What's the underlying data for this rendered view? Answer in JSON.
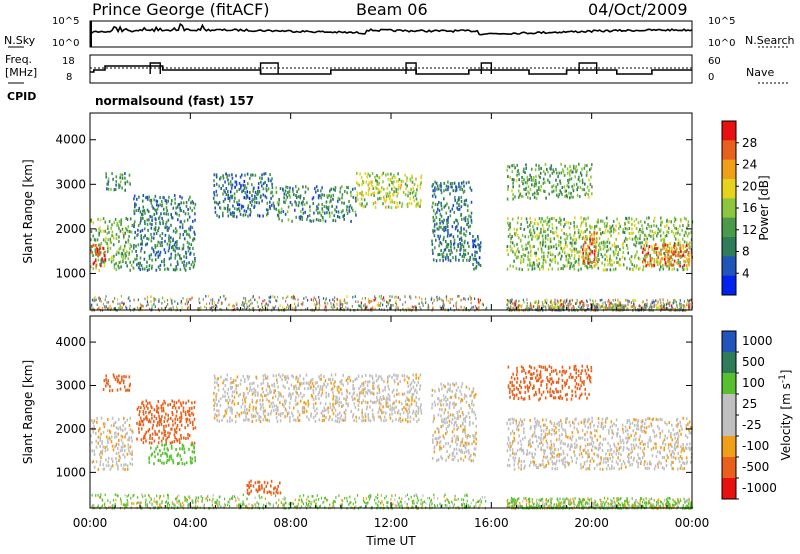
{
  "header": {
    "station": "Prince George (fitACF)",
    "beam": "Beam 06",
    "date": "04/Oct/2009"
  },
  "status": {
    "nsky_label": "N.Sky",
    "nsky_ticks": [
      "10^5",
      "10^0"
    ],
    "nsearch_label": "N.Search",
    "nsearch_ticks": [
      "10^5",
      "10^0"
    ],
    "freq_label_1": "Freq.",
    "freq_label_2": "[MHz]",
    "freq_ticks": [
      "18",
      "8"
    ],
    "nave_label": "Nave",
    "nave_ticks": [
      "60",
      "0"
    ],
    "cpid_label": "CPID",
    "cpid_value": "normalsound (fast) 157"
  },
  "colors": {
    "power": [
      "#0022ee",
      "#2255bb",
      "#2e7d58",
      "#4a9a4a",
      "#8cc63f",
      "#e6d31e",
      "#f0a018",
      "#e8601c",
      "#e81010"
    ],
    "velocity": [
      "#e81010",
      "#e8601c",
      "#f0a018",
      "#c0c0c0",
      "#c0c0c0",
      "#58c02e",
      "#2e7d58",
      "#2255bb"
    ],
    "ground": "#888888"
  },
  "chart_data": [
    {
      "type": "heatmap",
      "name": "power",
      "ylabel": "Slant Range [km]",
      "xlabel": "Time UT",
      "yticks": [
        "1000",
        "2000",
        "3000",
        "4000"
      ],
      "ytick_values": [
        1000,
        2000,
        3000,
        4000
      ],
      "xticks": [
        "00:00",
        "04:00",
        "08:00",
        "12:00",
        "16:00",
        "20:00",
        "00:00"
      ],
      "xtick_values": [
        0,
        4,
        8,
        12,
        16,
        20,
        24
      ],
      "xlim": [
        0,
        24
      ],
      "ylim": [
        180,
        4600
      ],
      "colorbar_label": "Power [dB]",
      "colorbar_ticks": [
        "28",
        "24",
        "20",
        "16",
        "12",
        "8",
        "4"
      ],
      "colorbar_values": [
        28,
        24,
        20,
        16,
        12,
        8,
        4
      ],
      "colorbar_range": [
        0,
        32
      ],
      "echo_regions": [
        {
          "t": [
            0.0,
            1.7
          ],
          "r": [
            1100,
            2300
          ],
          "value": 14
        },
        {
          "t": [
            0.0,
            0.6
          ],
          "r": [
            1200,
            1700
          ],
          "value": 28
        },
        {
          "t": [
            0.6,
            1.6
          ],
          "r": [
            2900,
            3300
          ],
          "value": 10
        },
        {
          "t": [
            1.7,
            4.2
          ],
          "r": [
            1100,
            2800
          ],
          "value": 9
        },
        {
          "t": [
            4.9,
            7.3
          ],
          "r": [
            2300,
            3300
          ],
          "value": 8
        },
        {
          "t": [
            7.3,
            10.6
          ],
          "r": [
            2200,
            3000
          ],
          "value": 10
        },
        {
          "t": [
            10.6,
            13.2
          ],
          "r": [
            2500,
            3300
          ],
          "value": 17
        },
        {
          "t": [
            13.6,
            15.2
          ],
          "r": [
            1300,
            3100
          ],
          "value": 9
        },
        {
          "t": [
            15.2,
            15.6
          ],
          "r": [
            1100,
            1900
          ],
          "value": 7
        },
        {
          "t": [
            16.6,
            24.0
          ],
          "r": [
            1100,
            2300
          ],
          "value": 15
        },
        {
          "t": [
            16.6,
            20.0
          ],
          "r": [
            2700,
            3500
          ],
          "value": 13
        },
        {
          "t": [
            22.0,
            24.0
          ],
          "r": [
            1200,
            1700
          ],
          "value": 26
        },
        {
          "t": [
            19.6,
            20.2
          ],
          "r": [
            1200,
            2000
          ],
          "value": 26
        }
      ],
      "ground_scatter": [
        {
          "t": [
            0.0,
            15.8
          ],
          "r": [
            200,
            520
          ]
        },
        {
          "t": [
            16.6,
            24.0
          ],
          "r": [
            200,
            440
          ]
        }
      ]
    },
    {
      "type": "heatmap",
      "name": "velocity",
      "ylabel": "Slant Range [km]",
      "xlabel": "Time UT",
      "yticks": [
        "1000",
        "2000",
        "3000",
        "4000"
      ],
      "ytick_values": [
        1000,
        2000,
        3000,
        4000
      ],
      "xticks": [
        "00:00",
        "04:00",
        "08:00",
        "12:00",
        "16:00",
        "20:00",
        "00:00"
      ],
      "xtick_values": [
        0,
        4,
        8,
        12,
        16,
        20,
        24
      ],
      "xlim": [
        0,
        24
      ],
      "ylim": [
        180,
        4600
      ],
      "colorbar_label": "Velocity [m s",
      "colorbar_sup": "-1",
      "colorbar_close": "]",
      "colorbar_ticks": [
        "1000",
        "500",
        "100",
        "25",
        "-25",
        "-100",
        "-500",
        "-1000"
      ],
      "colorbar_values": [
        1000,
        500,
        100,
        25,
        -25,
        -100,
        -500,
        -1000
      ],
      "echo_regions": [
        {
          "t": [
            0.0,
            1.7
          ],
          "r": [
            1100,
            2300
          ],
          "value": 0
        },
        {
          "t": [
            0.5,
            1.6
          ],
          "r": [
            2900,
            3300
          ],
          "value": -150
        },
        {
          "t": [
            1.8,
            4.2
          ],
          "r": [
            1700,
            2700
          ],
          "value": -300
        },
        {
          "t": [
            2.3,
            4.2
          ],
          "r": [
            1200,
            1700
          ],
          "value": 150
        },
        {
          "t": [
            4.9,
            13.2
          ],
          "r": [
            2200,
            3300
          ],
          "value": 0
        },
        {
          "t": [
            13.6,
            15.4
          ],
          "r": [
            1300,
            3100
          ],
          "value": 0
        },
        {
          "t": [
            6.2,
            7.6
          ],
          "r": [
            550,
            850
          ],
          "value": -150
        },
        {
          "t": [
            16.6,
            24.0
          ],
          "r": [
            1100,
            2300
          ],
          "value": 0
        },
        {
          "t": [
            16.6,
            20.0
          ],
          "r": [
            2700,
            3500
          ],
          "value": -150
        }
      ],
      "ground_scatter": [
        {
          "t": [
            0.0,
            15.8
          ],
          "r": [
            200,
            520
          ],
          "value": 60
        },
        {
          "t": [
            16.6,
            24.0
          ],
          "r": [
            200,
            440
          ],
          "value": 60
        }
      ]
    }
  ]
}
